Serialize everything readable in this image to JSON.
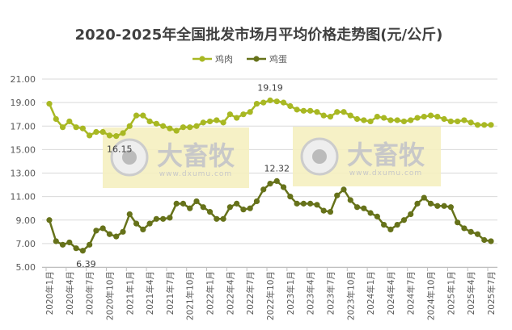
{
  "chart_data": {
    "type": "line",
    "title": "2020-2025年全国批发市场月平均价格走势图(元/公斤)",
    "xlabel": "",
    "ylabel": "",
    "ylim": [
      5,
      21
    ],
    "yticks": [
      "5.00",
      "7.00",
      "9.00",
      "11.00",
      "13.00",
      "15.00",
      "17.00",
      "19.00",
      "21.00"
    ],
    "grid": true,
    "legend_position": "top",
    "x_tick_labels": [
      "2020年1月",
      "2020年4月",
      "2020年7月",
      "2020年10月",
      "2021年1月",
      "2021年4月",
      "2021年7月",
      "2021年10月",
      "2022年1月",
      "2022年4月",
      "2022年7月",
      "2022年10月",
      "2023年1月",
      "2023年4月",
      "2023年7月",
      "2023年10月",
      "2024年1月",
      "2024年4月",
      "2024年7月",
      "2024年10月",
      "2025年1月",
      "2025年4月",
      "2025年7月"
    ],
    "x_start": "2020年1月",
    "x_end": "2025年7月",
    "series": [
      {
        "name": "鸡肉",
        "color": "#a8b823",
        "values": [
          18.9,
          17.6,
          16.9,
          17.4,
          16.9,
          16.8,
          16.2,
          16.5,
          16.5,
          16.2,
          16.15,
          16.4,
          17.0,
          17.9,
          17.9,
          17.4,
          17.2,
          17.0,
          16.8,
          16.6,
          16.9,
          16.9,
          17.0,
          17.3,
          17.4,
          17.5,
          17.3,
          18.0,
          17.7,
          18.0,
          18.2,
          18.9,
          19.0,
          19.19,
          19.1,
          19.0,
          18.7,
          18.4,
          18.3,
          18.3,
          18.2,
          17.9,
          17.8,
          18.2,
          18.2,
          17.9,
          17.6,
          17.5,
          17.4,
          17.8,
          17.7,
          17.5,
          17.5,
          17.4,
          17.5,
          17.7,
          17.8,
          17.9,
          17.8,
          17.6,
          17.4,
          17.4,
          17.5,
          17.3,
          17.1,
          17.1,
          17.1
        ]
      },
      {
        "name": "鸡蛋",
        "color": "#66721a",
        "values": [
          9.0,
          7.2,
          6.9,
          7.1,
          6.6,
          6.39,
          6.9,
          8.1,
          8.3,
          7.8,
          7.6,
          8.0,
          9.5,
          8.7,
          8.2,
          8.7,
          9.1,
          9.1,
          9.2,
          10.4,
          10.4,
          10.0,
          10.6,
          10.1,
          9.7,
          9.1,
          9.1,
          10.1,
          10.4,
          9.9,
          10.0,
          10.6,
          11.6,
          12.1,
          12.32,
          11.8,
          11.0,
          10.4,
          10.4,
          10.4,
          10.3,
          9.8,
          9.7,
          11.1,
          11.6,
          10.7,
          10.1,
          10.0,
          9.6,
          9.3,
          8.6,
          8.2,
          8.6,
          9.0,
          9.5,
          10.4,
          10.9,
          10.4,
          10.2,
          10.2,
          10.1,
          8.8,
          8.3,
          8.0,
          7.8,
          7.3,
          7.2
        ]
      }
    ],
    "annotations": [
      {
        "series": "鸡肉",
        "index": 10,
        "text": "16.15"
      },
      {
        "series": "鸡肉",
        "index": 33,
        "text": "19.19"
      },
      {
        "series": "鸡蛋",
        "index": 5,
        "text": "6.39"
      },
      {
        "series": "鸡蛋",
        "index": 34,
        "text": "12.32"
      }
    ]
  },
  "watermark": {
    "brand": "大畜牧",
    "url": "www.dxumu.com"
  }
}
